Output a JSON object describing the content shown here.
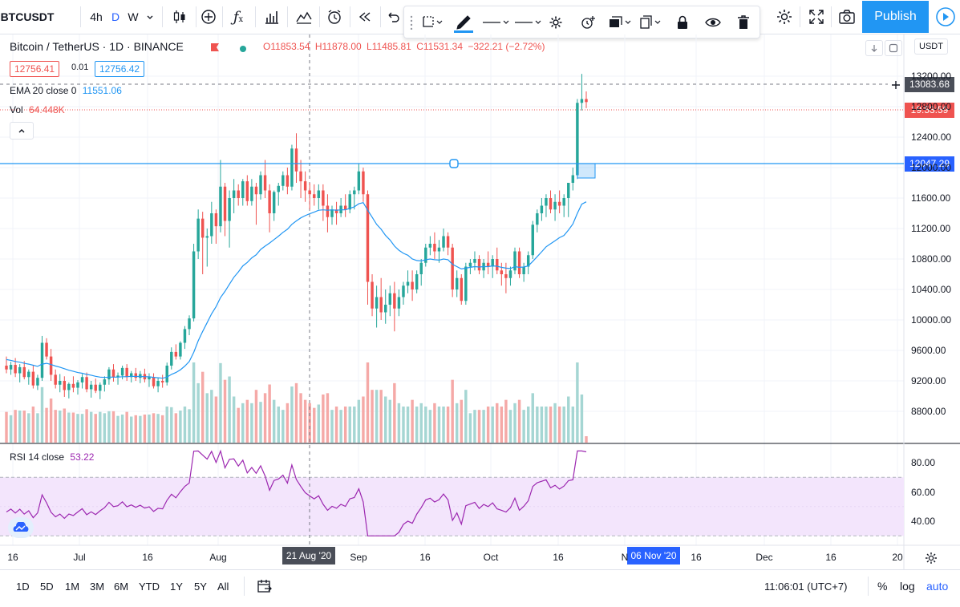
{
  "toolbar": {
    "symbol": "BTCUSDT",
    "resolutions": [
      "4h",
      "D",
      "W"
    ],
    "active_resolution": "D",
    "publish_label": "Publish"
  },
  "legend": {
    "title": "Bitcoin / TetherUS · 1D · BINANCE",
    "open": "O11853.54",
    "high": "H11878.00",
    "low": "L11485.81",
    "close": "C11531.34",
    "change": "−322.21 (−2.72%)",
    "bid": "12756.41",
    "spread": "0.01",
    "ask": "12756.42",
    "ema_label": "EMA 20 close 0",
    "ema_value": "11551.06",
    "vol_label": "Vol",
    "vol_value": "64.448K",
    "rsi_label": "RSI 14 close",
    "rsi_value": "53.22"
  },
  "price_axis": {
    "currency": "USDT",
    "ticks": [
      "13200.00",
      "12800.00",
      "12400.00",
      "12000.00",
      "11600.00",
      "11200.00",
      "10800.00",
      "10400.00",
      "10000.00",
      "9600.00",
      "9200.00",
      "8800.00"
    ],
    "crosshair_price": "13083.68",
    "last_price": "19:53:59",
    "line_price": "12047.29"
  },
  "rsi_axis": {
    "ticks": [
      "80.00",
      "60.00",
      "40.00"
    ]
  },
  "time_axis": {
    "ticks": [
      "16",
      "Jul",
      "16",
      "Aug",
      "Sep",
      "16",
      "Oct",
      "16",
      "N",
      "16",
      "Dec",
      "16",
      "20"
    ],
    "crosshair_date": "21 Aug '20",
    "selected_date": "06 Nov '20"
  },
  "bottom": {
    "ranges": [
      "1D",
      "5D",
      "1M",
      "3M",
      "6M",
      "YTD",
      "1Y",
      "5Y",
      "All"
    ],
    "clock": "11:06:01 (UTC+7)",
    "percent": "%",
    "log": "log",
    "auto": "auto"
  },
  "colors": {
    "up": "#26a69a",
    "down": "#ef5350",
    "ema": "#2196f3",
    "rsi": "#9c27b0",
    "rsi_band": "#f3e5fc",
    "accent": "#2962ff"
  },
  "chart_data": {
    "type": "candlestick",
    "symbol": "BTCUSDT",
    "interval": "1D",
    "y_range": [
      8700,
      13400
    ],
    "candles": [
      [
        9400,
        9520,
        9300,
        9350
      ],
      [
        9350,
        9450,
        9280,
        9410
      ],
      [
        9410,
        9500,
        9250,
        9300
      ],
      [
        9300,
        9420,
        9180,
        9380
      ],
      [
        9380,
        9460,
        9220,
        9250
      ],
      [
        9250,
        9350,
        9150,
        9320
      ],
      [
        9320,
        9400,
        9100,
        9140
      ],
      [
        9140,
        9280,
        9080,
        9240
      ],
      [
        9240,
        9790,
        9200,
        9700
      ],
      [
        9700,
        9760,
        9480,
        9520
      ],
      [
        9520,
        9620,
        9200,
        9280
      ],
      [
        9280,
        9350,
        9100,
        9150
      ],
      [
        9150,
        9290,
        9050,
        9200
      ],
      [
        9200,
        9260,
        8990,
        9080
      ],
      [
        9080,
        9180,
        8970,
        9160
      ],
      [
        9160,
        9260,
        9050,
        9110
      ],
      [
        9110,
        9210,
        9020,
        9180
      ],
      [
        9180,
        9290,
        9100,
        9250
      ],
      [
        9250,
        9310,
        9050,
        9090
      ],
      [
        9090,
        9200,
        8980,
        9150
      ],
      [
        9150,
        9230,
        9040,
        9070
      ],
      [
        9070,
        9180,
        8960,
        9150
      ],
      [
        9150,
        9260,
        9060,
        9220
      ],
      [
        9220,
        9380,
        9150,
        9350
      ],
      [
        9350,
        9420,
        9190,
        9250
      ],
      [
        9250,
        9310,
        9150,
        9270
      ],
      [
        9270,
        9400,
        9220,
        9370
      ],
      [
        9370,
        9420,
        9200,
        9250
      ],
      [
        9250,
        9330,
        9180,
        9300
      ],
      [
        9300,
        9370,
        9200,
        9240
      ],
      [
        9240,
        9330,
        9170,
        9290
      ],
      [
        9290,
        9360,
        9180,
        9220
      ],
      [
        9220,
        9300,
        9120,
        9250
      ],
      [
        9250,
        9300,
        9100,
        9130
      ],
      [
        9130,
        9240,
        9050,
        9200
      ],
      [
        9200,
        9280,
        9110,
        9180
      ],
      [
        9180,
        9440,
        9140,
        9400
      ],
      [
        9400,
        9640,
        9350,
        9580
      ],
      [
        9580,
        9680,
        9480,
        9520
      ],
      [
        9520,
        9720,
        9480,
        9700
      ],
      [
        9700,
        9920,
        9620,
        9880
      ],
      [
        9880,
        10060,
        9800,
        10020
      ],
      [
        10020,
        11000,
        9980,
        10900
      ],
      [
        10900,
        11450,
        10800,
        11330
      ],
      [
        11330,
        11420,
        10600,
        11080
      ],
      [
        11080,
        11200,
        10700,
        11100
      ],
      [
        11100,
        11550,
        11000,
        11400
      ],
      [
        11400,
        11450,
        11000,
        11230
      ],
      [
        11230,
        12100,
        11150,
        11750
      ],
      [
        11750,
        11800,
        11100,
        11300
      ],
      [
        11300,
        11700,
        10950,
        11600
      ],
      [
        11600,
        11850,
        11400,
        11700
      ],
      [
        11700,
        11780,
        11500,
        11600
      ],
      [
        11600,
        11850,
        11500,
        11820
      ],
      [
        11820,
        11900,
        11500,
        11560
      ],
      [
        11560,
        11850,
        11500,
        11750
      ],
      [
        11750,
        11800,
        11250,
        11650
      ],
      [
        11650,
        11950,
        11580,
        11900
      ],
      [
        11900,
        12100,
        11600,
        11700
      ],
      [
        11700,
        11780,
        11150,
        11400
      ],
      [
        11400,
        11700,
        11300,
        11680
      ],
      [
        11680,
        11800,
        11500,
        11760
      ],
      [
        11760,
        11950,
        11700,
        11900
      ],
      [
        11900,
        12000,
        11650,
        11750
      ],
      [
        11750,
        12300,
        11700,
        12250
      ],
      [
        12250,
        12450,
        11800,
        11950
      ],
      [
        11950,
        12100,
        11600,
        11820
      ],
      [
        11820,
        11950,
        11550,
        11700
      ],
      [
        11700,
        11800,
        11450,
        11650
      ],
      [
        11650,
        11780,
        11500,
        11600
      ],
      [
        11600,
        11780,
        11450,
        11700
      ],
      [
        11700,
        11780,
        11300,
        11500
      ],
      [
        11500,
        11650,
        11150,
        11350
      ],
      [
        11350,
        11500,
        11250,
        11450
      ],
      [
        11450,
        11550,
        11250,
        11400
      ],
      [
        11400,
        11600,
        11350,
        11500
      ],
      [
        11500,
        11650,
        11350,
        11450
      ],
      [
        11450,
        11700,
        11400,
        11650
      ],
      [
        11650,
        11750,
        11450,
        11700
      ],
      [
        11700,
        12050,
        11650,
        11950
      ],
      [
        11950,
        12000,
        11550,
        11650
      ],
      [
        11650,
        11700,
        10200,
        10500
      ],
      [
        10500,
        10600,
        10050,
        10150
      ],
      [
        10150,
        10450,
        9900,
        10300
      ],
      [
        10300,
        10550,
        10000,
        10100
      ],
      [
        10100,
        10400,
        9950,
        10200
      ],
      [
        10200,
        10450,
        10050,
        10350
      ],
      [
        10350,
        10500,
        9850,
        10150
      ],
      [
        10150,
        10400,
        10050,
        10300
      ],
      [
        10300,
        10500,
        10200,
        10450
      ],
      [
        10450,
        10650,
        10350,
        10500
      ],
      [
        10500,
        10650,
        10250,
        10400
      ],
      [
        10400,
        10650,
        10350,
        10600
      ],
      [
        10600,
        10800,
        10450,
        10750
      ],
      [
        10750,
        11000,
        10700,
        10950
      ],
      [
        10950,
        11100,
        10850,
        11000
      ],
      [
        11000,
        11150,
        10800,
        10900
      ],
      [
        10900,
        11050,
        10750,
        10950
      ],
      [
        10950,
        11200,
        10900,
        11100
      ],
      [
        11100,
        11150,
        10850,
        10950
      ],
      [
        10950,
        11000,
        10300,
        10400
      ],
      [
        10400,
        10650,
        10300,
        10550
      ],
      [
        10550,
        10600,
        10200,
        10250
      ],
      [
        10250,
        10750,
        10200,
        10700
      ],
      [
        10700,
        10800,
        10600,
        10750
      ],
      [
        10750,
        10900,
        10650,
        10800
      ],
      [
        10800,
        10850,
        10600,
        10650
      ],
      [
        10650,
        10800,
        10550,
        10750
      ],
      [
        10750,
        10900,
        10600,
        10700
      ],
      [
        10700,
        10850,
        10550,
        10800
      ],
      [
        10800,
        10950,
        10600,
        10650
      ],
      [
        10650,
        10750,
        10450,
        10600
      ],
      [
        10600,
        10750,
        10350,
        10550
      ],
      [
        10550,
        10700,
        10450,
        10650
      ],
      [
        10650,
        10950,
        10600,
        10900
      ],
      [
        10900,
        10950,
        10550,
        10600
      ],
      [
        10600,
        10750,
        10500,
        10700
      ],
      [
        10700,
        10900,
        10600,
        10850
      ],
      [
        10850,
        11300,
        10800,
        11250
      ],
      [
        11250,
        11450,
        11150,
        11400
      ],
      [
        11400,
        11600,
        11300,
        11500
      ],
      [
        11500,
        11650,
        11350,
        11600
      ],
      [
        11600,
        11700,
        11400,
        11450
      ],
      [
        11450,
        11650,
        11300,
        11550
      ],
      [
        11550,
        11700,
        11400,
        11500
      ],
      [
        11500,
        11650,
        11350,
        11600
      ],
      [
        11600,
        11800,
        11350,
        11800
      ],
      [
        11800,
        12000,
        11700,
        11900
      ],
      [
        11900,
        12900,
        11850,
        12850
      ],
      [
        12850,
        13230,
        12750,
        12900
      ],
      [
        12900,
        13000,
        12780,
        12860
      ]
    ],
    "ema": [
      9480,
      9470,
      9455,
      9445,
      9430,
      9420,
      9405,
      9390,
      9420,
      9430,
      9415,
      9395,
      9380,
      9360,
      9340,
      9325,
      9310,
      9300,
      9285,
      9275,
      9260,
      9250,
      9245,
      9250,
      9250,
      9250,
      9255,
      9255,
      9260,
      9258,
      9258,
      9255,
      9254,
      9246,
      9241,
      9235,
      9250,
      9285,
      9310,
      9345,
      9395,
      9455,
      9575,
      9725,
      9850,
      9965,
      10080,
      10175,
      10295,
      10375,
      10470,
      10560,
      10630,
      10710,
      10755,
      10815,
      10855,
      10925,
      10970,
      11010,
      11055,
      11100,
      11150,
      11190,
      11255,
      11300,
      11340,
      11370,
      11395,
      11415,
      11440,
      11445,
      11440,
      11445,
      11440,
      11445,
      11445,
      11465,
      11485,
      11525,
      11540,
      11440,
      11350,
      11255,
      11190,
      11110,
      11050,
      10970,
      10915,
      10875,
      10850,
      10800,
      10780,
      10775,
      10790,
      10800,
      10790,
      10785,
      10800,
      10790,
      10730,
      10700,
      10670,
      10680,
      10690,
      10700,
      10695,
      10700,
      10700,
      10710,
      10705,
      10690,
      10680,
      10675,
      10700,
      10690,
      10695,
      10710,
      10770,
      10830,
      10895,
      10960,
      11000,
      11040,
      11080,
      11110,
      11180,
      11260,
      11400,
      11520,
      11551
    ]
  }
}
